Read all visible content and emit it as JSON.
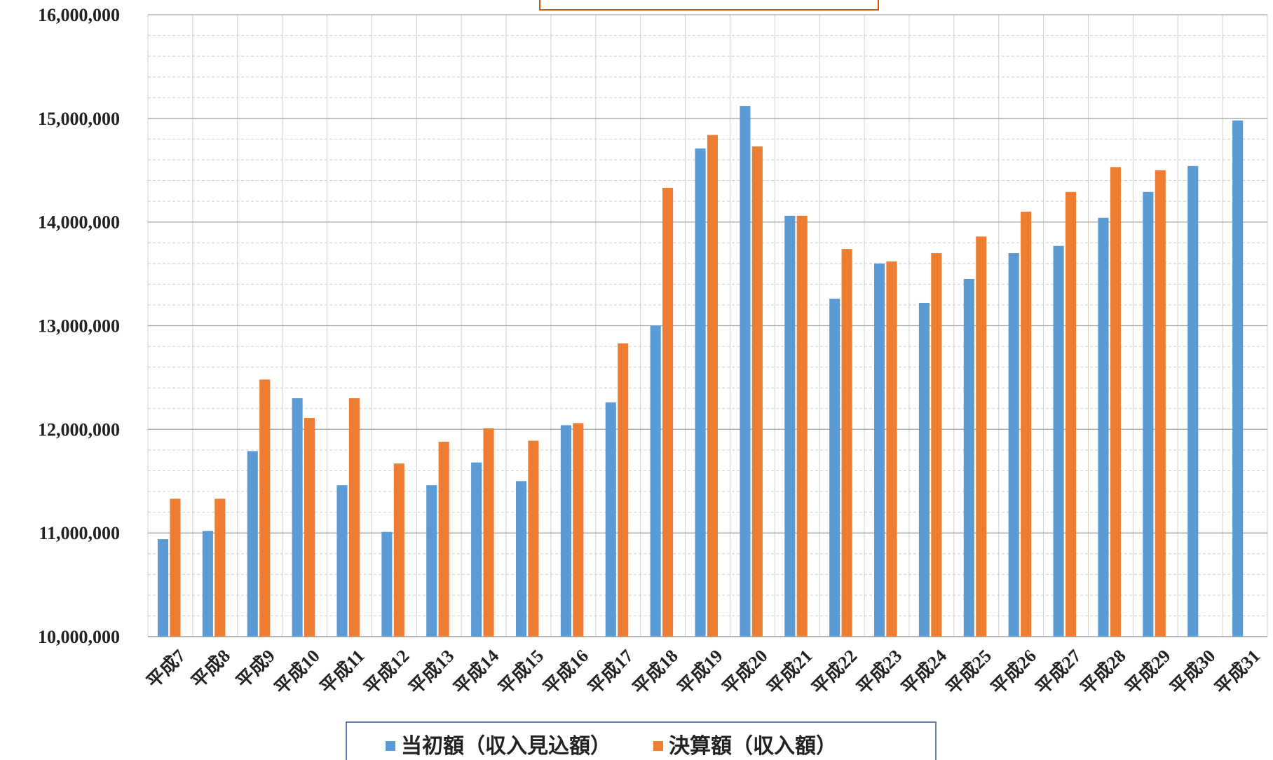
{
  "chart_data": {
    "type": "bar",
    "categories": [
      "平成7",
      "平成8",
      "平成9",
      "平成10",
      "平成11",
      "平成12",
      "平成13",
      "平成14",
      "平成15",
      "平成16",
      "平成17",
      "平成18",
      "平成19",
      "平成20",
      "平成21",
      "平成22",
      "平成23",
      "平成24",
      "平成25",
      "平成26",
      "平成27",
      "平成28",
      "平成29",
      "平成30",
      "平成31"
    ],
    "series": [
      {
        "name": "当初額（収入見込額）",
        "color": "#5b9bd5",
        "values": [
          10940000,
          11020000,
          11790000,
          12300000,
          11460000,
          11010000,
          11460000,
          11680000,
          11500000,
          12040000,
          12260000,
          13000000,
          14710000,
          15120000,
          14060000,
          13260000,
          13600000,
          13220000,
          13450000,
          13700000,
          13770000,
          14040000,
          14290000,
          14540000,
          14980000
        ]
      },
      {
        "name": "決算額（収入額）",
        "color": "#ed7d31",
        "values": [
          11330000,
          11330000,
          12480000,
          12110000,
          12300000,
          11670000,
          11880000,
          12010000,
          11890000,
          12060000,
          12830000,
          14330000,
          14840000,
          14730000,
          14060000,
          13740000,
          13620000,
          13700000,
          13860000,
          14100000,
          14290000,
          14530000,
          14500000,
          null,
          null
        ]
      }
    ],
    "ylim": [
      10000000,
      16000000
    ],
    "yticks": [
      {
        "value": 10000000,
        "label": "10,000,000"
      },
      {
        "value": 11000000,
        "label": "11,000,000"
      },
      {
        "value": 12000000,
        "label": "12,000,000"
      },
      {
        "value": 13000000,
        "label": "13,000,000"
      },
      {
        "value": 14000000,
        "label": "14,000,000"
      },
      {
        "value": 15000000,
        "label": "15,000,000"
      },
      {
        "value": 16000000,
        "label": "16,000,000"
      }
    ],
    "grid": true
  }
}
